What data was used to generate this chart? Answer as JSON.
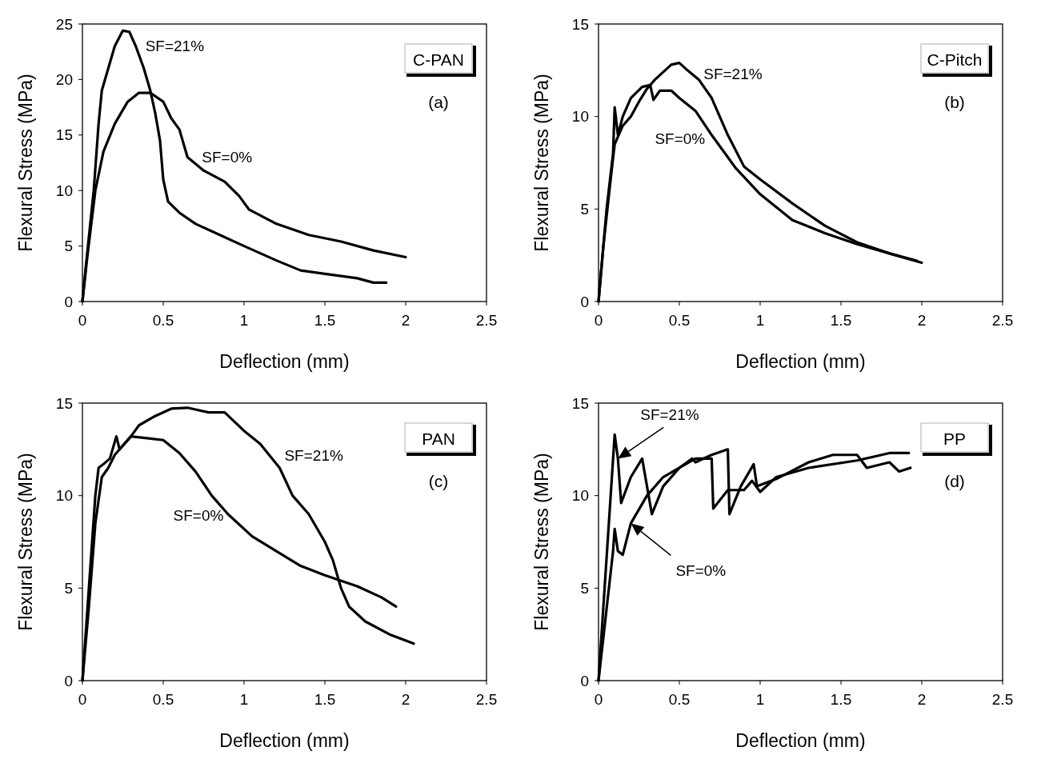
{
  "chart_data": [
    {
      "type": "line",
      "xlabel": "Deflection (mm)",
      "ylabel": "Flexural Stress (MPa)",
      "xlim": [
        0,
        2.5
      ],
      "xticks": [
        0,
        0.5,
        1,
        1.5,
        2,
        2.5
      ],
      "ylim": [
        0,
        25
      ],
      "yticks": [
        0,
        5,
        10,
        15,
        20,
        25
      ],
      "grid": false,
      "series": [
        {
          "name": "SF=21%",
          "color": "#000000",
          "x": [
            0,
            0.02,
            0.07,
            0.1,
            0.12,
            0.16,
            0.2,
            0.25,
            0.29,
            0.33,
            0.38,
            0.42,
            0.45,
            0.48,
            0.5,
            0.53,
            0.6,
            0.7,
            0.85,
            1.0,
            1.2,
            1.35,
            1.5,
            1.7,
            1.8,
            1.88
          ],
          "values": [
            0,
            3,
            10,
            16,
            19,
            21,
            23,
            24.4,
            24.3,
            23,
            21,
            19,
            17,
            14.5,
            11,
            9,
            8,
            7,
            6,
            5,
            3.7,
            2.8,
            2.5,
            2.1,
            1.7,
            1.7
          ]
        },
        {
          "name": "SF=0%",
          "color": "#000000",
          "x": [
            0,
            0.03,
            0.08,
            0.13,
            0.2,
            0.28,
            0.35,
            0.42,
            0.5,
            0.55,
            0.6,
            0.65,
            0.75,
            0.88,
            0.97,
            1.03,
            1.2,
            1.4,
            1.6,
            1.8,
            2.0
          ],
          "values": [
            0,
            4,
            10,
            13.5,
            16,
            18,
            18.8,
            18.8,
            18,
            16.5,
            15.5,
            13,
            11.8,
            10.8,
            9.5,
            8.3,
            7,
            6,
            5.4,
            4.6,
            4
          ]
        }
      ],
      "annotations": [
        "C-PAN",
        "(a)"
      ]
    },
    {
      "type": "line",
      "xlabel": "Deflection (mm)",
      "ylabel": "Flexural Stress (MPa)",
      "xlim": [
        0,
        2.5
      ],
      "xticks": [
        0,
        0.5,
        1,
        1.5,
        2,
        2.5
      ],
      "ylim": [
        0,
        15
      ],
      "yticks": [
        0,
        5,
        10,
        15
      ],
      "grid": false,
      "series": [
        {
          "name": "SF=21%",
          "color": "#000000",
          "x": [
            0,
            0.03,
            0.08,
            0.1,
            0.15,
            0.2,
            0.25,
            0.3,
            0.35,
            0.45,
            0.5,
            0.55,
            0.62,
            0.7,
            0.8,
            0.9,
            1.0,
            1.2,
            1.4,
            1.6,
            1.8,
            2.0
          ],
          "values": [
            0,
            3,
            7,
            8.5,
            9.5,
            10,
            10.8,
            11.5,
            12,
            12.8,
            12.9,
            12.5,
            12,
            11,
            9,
            7.3,
            6.6,
            5.3,
            4.1,
            3.2,
            2.6,
            2.1
          ]
        },
        {
          "name": "SF=0%",
          "color": "#000000",
          "x": [
            0,
            0.05,
            0.09,
            0.1,
            0.12,
            0.15,
            0.2,
            0.27,
            0.32,
            0.34,
            0.38,
            0.45,
            0.5,
            0.6,
            0.7,
            0.85,
            1.0,
            1.2,
            1.4,
            1.6,
            1.8,
            1.97
          ],
          "values": [
            0,
            5,
            8,
            10.5,
            9,
            10,
            11,
            11.6,
            11.7,
            10.9,
            11.4,
            11.4,
            11,
            10.3,
            9,
            7.2,
            5.8,
            4.4,
            3.7,
            3.1,
            2.6,
            2.2
          ]
        }
      ],
      "annotations": [
        "C-Pitch",
        "(b)"
      ]
    },
    {
      "type": "line",
      "xlabel": "Deflection (mm)",
      "ylabel": "Flexural Stress (MPa)",
      "xlim": [
        0,
        2.5
      ],
      "xticks": [
        0,
        0.5,
        1,
        1.5,
        2,
        2.5
      ],
      "ylim": [
        0,
        15
      ],
      "yticks": [
        0,
        5,
        10,
        15
      ],
      "grid": false,
      "series": [
        {
          "name": "SF=21%",
          "color": "#000000",
          "x": [
            0,
            0.04,
            0.08,
            0.12,
            0.16,
            0.2,
            0.24,
            0.3,
            0.35,
            0.45,
            0.55,
            0.65,
            0.78,
            0.88,
            1.0,
            1.1,
            1.22,
            1.3,
            1.4,
            1.5,
            1.55,
            1.6,
            1.65,
            1.75,
            1.9,
            2.05
          ],
          "values": [
            0,
            4,
            8.5,
            11,
            11.5,
            12.2,
            12.6,
            13.2,
            13.8,
            14.3,
            14.7,
            14.75,
            14.5,
            14.5,
            13.5,
            12.8,
            11.5,
            10,
            9,
            7.5,
            6.5,
            5,
            4,
            3.2,
            2.5,
            2
          ]
        },
        {
          "name": "SF=0%",
          "color": "#000000",
          "x": [
            0,
            0.04,
            0.08,
            0.1,
            0.13,
            0.17,
            0.21,
            0.23,
            0.3,
            0.4,
            0.5,
            0.6,
            0.7,
            0.8,
            0.9,
            1.05,
            1.2,
            1.35,
            1.5,
            1.7,
            1.85,
            1.94
          ],
          "values": [
            0,
            5,
            10,
            11.5,
            11.7,
            12,
            13.2,
            12.5,
            13.2,
            13.1,
            13,
            12.3,
            11.3,
            10,
            9,
            7.8,
            7,
            6.2,
            5.7,
            5.1,
            4.5,
            4
          ]
        }
      ],
      "annotations": [
        "PAN",
        "(c)"
      ]
    },
    {
      "type": "line",
      "xlabel": "Deflection (mm)",
      "ylabel": "Flexural Stress (MPa)",
      "xlim": [
        0,
        2.5
      ],
      "xticks": [
        0,
        0.5,
        1,
        1.5,
        2,
        2.5
      ],
      "ylim": [
        0,
        15
      ],
      "yticks": [
        0,
        5,
        10,
        15
      ],
      "grid": false,
      "series": [
        {
          "color": "#000000",
          "x": [
            0,
            0.1,
            0.12,
            0.14,
            0.2,
            0.27,
            0.33,
            0.4,
            0.5,
            0.58,
            0.6,
            0.7,
            0.8,
            0.81,
            0.88,
            0.96,
            0.98,
            1.1,
            1.3,
            1.45,
            1.6,
            1.66,
            1.8,
            1.86,
            1.93
          ],
          "values": [
            0,
            13.3,
            12,
            9.6,
            11,
            12,
            9,
            10.5,
            11.5,
            12,
            11.8,
            12.2,
            12.5,
            9,
            10.5,
            11.7,
            10.5,
            10.9,
            11.8,
            12.2,
            12.2,
            11.5,
            11.8,
            11.3,
            11.5
          ]
        },
        {
          "color": "#000000",
          "x": [
            0,
            0.09,
            0.1,
            0.12,
            0.15,
            0.2,
            0.3,
            0.4,
            0.5,
            0.6,
            0.7,
            0.71,
            0.8,
            0.9,
            0.95,
            1.0,
            1.1,
            1.3,
            1.6,
            1.8,
            1.92
          ],
          "values": [
            0,
            7,
            8.2,
            7,
            6.8,
            8.5,
            10,
            11,
            11.5,
            12,
            12,
            9.3,
            10.3,
            10.3,
            10.8,
            10.2,
            11,
            11.5,
            11.9,
            12.3,
            12.3
          ]
        }
      ],
      "annotations": [
        "PP",
        "(d)",
        {
          "text": "SF=21%",
          "x": 0.12,
          "y": 12
        },
        "SF=0%"
      ]
    }
  ]
}
